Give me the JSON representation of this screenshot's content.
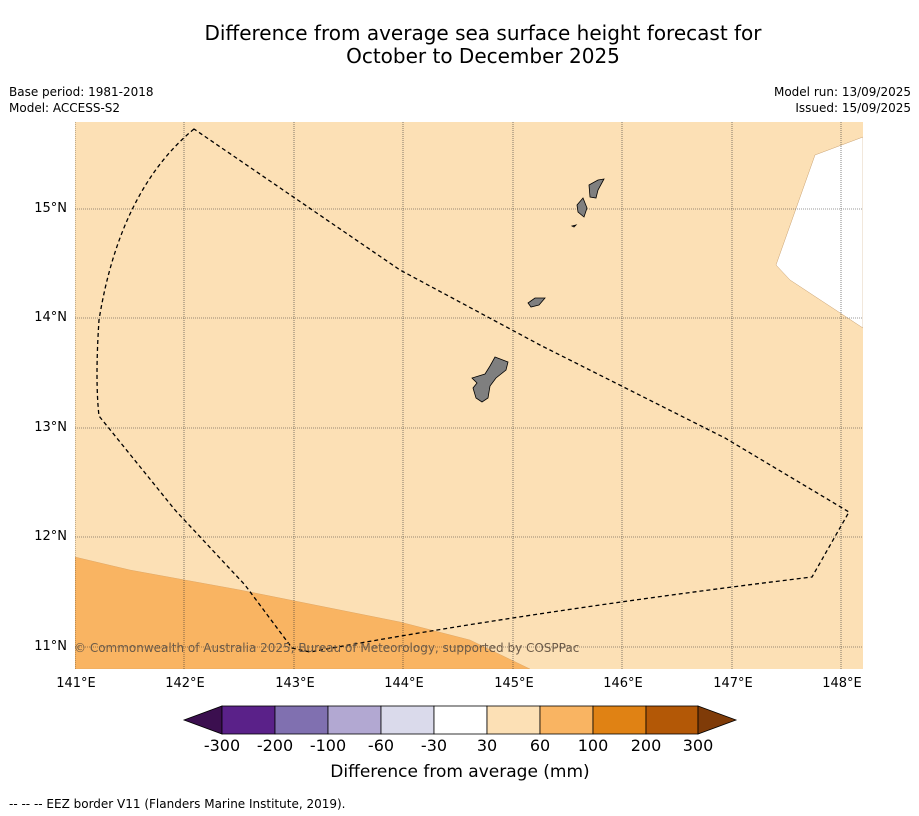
{
  "title": {
    "line1": "Difference from average sea surface height forecast for",
    "line2": "October to December 2025"
  },
  "meta": {
    "base_period": "Base period: 1981-2018",
    "model": "Model: ACCESS-S2",
    "model_run": "Model run: 13/09/2025",
    "issued": "Issued: 15/09/2025"
  },
  "map": {
    "lon_ticks": [
      "141°E",
      "142°E",
      "143°E",
      "144°E",
      "145°E",
      "146°E",
      "147°E",
      "148°E"
    ],
    "lat_ticks": [
      "15°N",
      "14°N",
      "13°N",
      "12°N",
      "11°N"
    ],
    "lon_range": [
      141,
      148.2
    ],
    "lat_range": [
      10.8,
      15.8
    ],
    "copyright": "© Commonwealth of Australia 2025, Bureau of Meteorology, supported by COSPPac",
    "colors": {
      "band_30_60": "#fce0b5",
      "band_60_100": "#f9b462",
      "land": "#7f7f7f",
      "no_data": "#ffffff"
    },
    "islands": [
      "Guam",
      "Rota",
      "Tinian",
      "Saipan"
    ]
  },
  "colorbar": {
    "labels": [
      "-300",
      "-200",
      "-100",
      "-60",
      "-30",
      "30",
      "60",
      "100",
      "200",
      "300"
    ],
    "colors": [
      "#3b0f4f",
      "#5a2189",
      "#8070b0",
      "#b2a8d2",
      "#dadaeb",
      "#ffffff",
      "#fce0b5",
      "#f9b462",
      "#e08214",
      "#b35806",
      "#7f3b08"
    ],
    "title": "Difference from average (mm)"
  },
  "legend": {
    "eez": "--  --  -- EEZ border V11 (Flanders Marine Institute, 2019)."
  }
}
